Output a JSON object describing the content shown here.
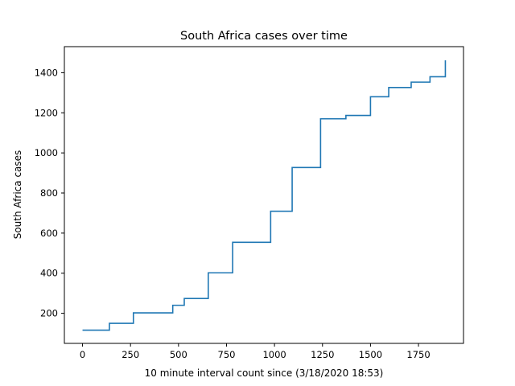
{
  "chart_data": {
    "type": "line",
    "drawstyle": "steps-post",
    "title": "South Africa cases over time",
    "xlabel": "10 minute interval count since (3/18/2020 18:53)",
    "ylabel": "South Africa cases",
    "xlim": [
      -94.5,
      1984.5
    ],
    "ylim": [
      50,
      1530
    ],
    "xticks": [
      0,
      250,
      500,
      750,
      1000,
      1250,
      1500,
      1750
    ],
    "yticks": [
      200,
      400,
      600,
      800,
      1000,
      1200,
      1400
    ],
    "grid": false,
    "legend": "none",
    "color": "#1f77b4",
    "series": [
      {
        "x": [
          0,
          58,
          140,
          265,
          470,
          530,
          655,
          782,
          980,
          1092,
          1240,
          1372,
          1500,
          1595,
          1712,
          1810,
          1890
        ],
        "y": [
          116,
          116,
          150,
          202,
          240,
          274,
          402,
          554,
          709,
          927,
          1170,
          1187,
          1280,
          1326,
          1353,
          1380,
          1462
        ]
      }
    ]
  }
}
